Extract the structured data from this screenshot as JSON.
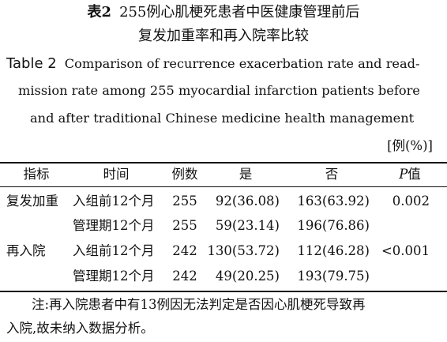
{
  "title_cn": {
    "label": "表2",
    "line1": "255例心肌梗死患者中医健康管理前后",
    "line2": "复发加重率和再入院率比较"
  },
  "title_en": {
    "label": "Table 2",
    "line1": "Comparison of recurrence exacerbation rate and read-",
    "line2": "mission rate among 255 myocardial infarction patients before",
    "line3": "and after traditional Chinese medicine health management"
  },
  "unit": "[例(%)]",
  "table": {
    "headers": {
      "indicator": "指标",
      "time": "时间",
      "cases": "例数",
      "yes": "是",
      "no": "否",
      "p_letter": "P",
      "p_suffix": "值"
    },
    "rows": [
      {
        "indicator": "复发加重",
        "time": "入组前12个月",
        "cases": "255",
        "yes": "92(36.08)",
        "no": "163(63.92)",
        "p": "0.002"
      },
      {
        "indicator": "",
        "time": "管理期12个月",
        "cases": "255",
        "yes": "59(23.14)",
        "no": "196(76.86)",
        "p": ""
      },
      {
        "indicator": "再入院",
        "time": "入组前12个月",
        "cases": "242",
        "yes": "130(53.72)",
        "no": "112(46.28)",
        "p": "<0.001"
      },
      {
        "indicator": "",
        "time": "管理期12个月",
        "cases": "242",
        "yes": "49(20.25)",
        "no": "193(79.75)",
        "p": ""
      }
    ]
  },
  "note": {
    "line1": "注:再入院患者中有13例因无法判定是否因心肌梗死导致再",
    "line2": "入院,故未纳入数据分析。"
  }
}
